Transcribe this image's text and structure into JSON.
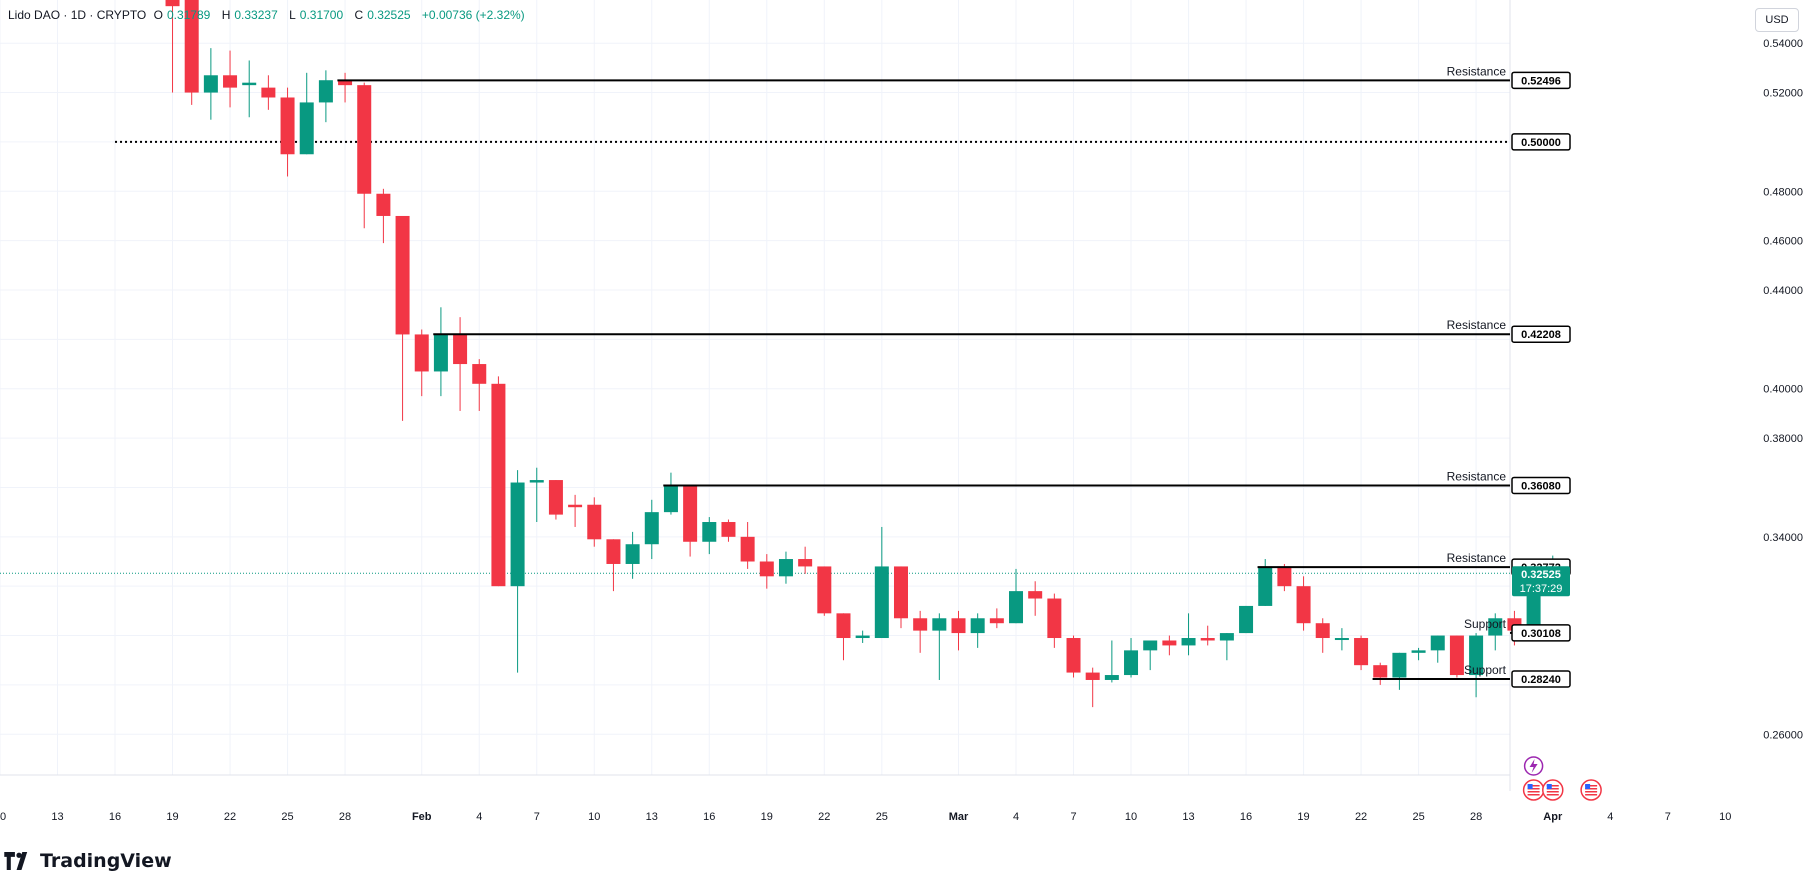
{
  "header": {
    "symbol": "Lido DAO · 1D · CRYPTO",
    "open_label": "O",
    "open": "0.31789",
    "high_label": "H",
    "high": "0.33237",
    "low_label": "L",
    "low": "0.31700",
    "close_label": "C",
    "close": "0.32525",
    "change": "+0.00736 (+2.32%)"
  },
  "currency_button": "USD",
  "brand": "TradingView",
  "colors": {
    "up": "#089981",
    "down": "#f23645",
    "level_line": "#000000",
    "grid": "#f0f3fa",
    "text": "#131722",
    "event_flash": "#9c27b0",
    "event_flag": "#f23645"
  },
  "chart_data": {
    "type": "candlestick",
    "symbol": "Lido DAO",
    "interval": "1D",
    "exchange": "CRYPTO",
    "price_axis": {
      "range": [
        0.2435,
        0.5575
      ],
      "ticks": [
        "0.54000",
        "0.52000",
        "0.48000",
        "0.46000",
        "0.44000",
        "0.40000",
        "0.38000",
        "0.34000",
        "0.26000"
      ]
    },
    "time_axis": {
      "index_range": [
        -0.3,
        52.8
      ],
      "ticks": [
        {
          "i": -0.1,
          "label": "10"
        },
        {
          "i": 2.9,
          "label": "13"
        },
        {
          "i": 5.9,
          "label": "16"
        },
        {
          "i": 8.9,
          "label": "19"
        },
        {
          "i": 11.9,
          "label": "22"
        },
        {
          "i": 14.9,
          "label": "25"
        },
        {
          "i": 17.9,
          "label": "28"
        },
        {
          "i": 21.9,
          "label": "Feb"
        },
        {
          "i": 24.9,
          "label": "4"
        },
        {
          "i": 27.9,
          "label": "7"
        },
        {
          "i": 30.9,
          "label": "10"
        },
        {
          "i": 33.9,
          "label": "13"
        },
        {
          "i": 36.9,
          "label": "16"
        },
        {
          "i": 39.9,
          "label": "19"
        },
        {
          "i": 42.9,
          "label": "22"
        },
        {
          "i": 45.9,
          "label": "25"
        },
        {
          "i": 49.9,
          "label": "Mar"
        },
        {
          "i": 52.9,
          "label": "4"
        },
        {
          "i": 55.9,
          "label": "7"
        },
        {
          "i": 58.9,
          "label": "10"
        },
        {
          "i": 61.9,
          "label": "13"
        },
        {
          "i": 64.9,
          "label": "16"
        },
        {
          "i": 67.9,
          "label": "19"
        },
        {
          "i": 70.9,
          "label": "22"
        },
        {
          "i": 73.9,
          "label": "25"
        },
        {
          "i": 76.9,
          "label": "28"
        },
        {
          "i": 80.9,
          "label": "Apr"
        },
        {
          "i": 83.9,
          "label": "4"
        },
        {
          "i": 86.9,
          "label": "7"
        },
        {
          "i": 89.9,
          "label": "10"
        }
      ]
    },
    "candles": [
      {
        "i": 8.9,
        "o": 0.5575,
        "h": 0.5575,
        "l": 0.52,
        "c": 0.555
      },
      {
        "i": 9.9,
        "o": 0.5575,
        "h": 0.5575,
        "l": 0.515,
        "c": 0.52
      },
      {
        "i": 10.9,
        "o": 0.52,
        "h": 0.538,
        "l": 0.509,
        "c": 0.527
      },
      {
        "i": 11.9,
        "o": 0.527,
        "h": 0.537,
        "l": 0.514,
        "c": 0.522
      },
      {
        "i": 12.9,
        "o": 0.523,
        "h": 0.533,
        "l": 0.51,
        "c": 0.524
      },
      {
        "i": 13.9,
        "o": 0.522,
        "h": 0.527,
        "l": 0.513,
        "c": 0.518
      },
      {
        "i": 14.9,
        "o": 0.518,
        "h": 0.522,
        "l": 0.486,
        "c": 0.495
      },
      {
        "i": 15.9,
        "o": 0.495,
        "h": 0.528,
        "l": 0.495,
        "c": 0.516
      },
      {
        "i": 16.9,
        "o": 0.516,
        "h": 0.529,
        "l": 0.508,
        "c": 0.525
      },
      {
        "i": 17.9,
        "o": 0.525,
        "h": 0.528,
        "l": 0.516,
        "c": 0.523
      },
      {
        "i": 18.9,
        "o": 0.523,
        "h": 0.524,
        "l": 0.465,
        "c": 0.479
      },
      {
        "i": 19.9,
        "o": 0.479,
        "h": 0.481,
        "l": 0.459,
        "c": 0.47
      },
      {
        "i": 20.9,
        "o": 0.47,
        "h": 0.47,
        "l": 0.387,
        "c": 0.422
      },
      {
        "i": 21.9,
        "o": 0.422,
        "h": 0.424,
        "l": 0.397,
        "c": 0.407
      },
      {
        "i": 22.9,
        "o": 0.407,
        "h": 0.433,
        "l": 0.397,
        "c": 0.422
      },
      {
        "i": 23.9,
        "o": 0.422,
        "h": 0.429,
        "l": 0.391,
        "c": 0.41
      },
      {
        "i": 24.9,
        "o": 0.41,
        "h": 0.412,
        "l": 0.391,
        "c": 0.402
      },
      {
        "i": 25.9,
        "o": 0.402,
        "h": 0.405,
        "l": 0.32,
        "c": 0.32
      },
      {
        "i": 26.9,
        "o": 0.32,
        "h": 0.367,
        "l": 0.285,
        "c": 0.362
      },
      {
        "i": 27.9,
        "o": 0.362,
        "h": 0.368,
        "l": 0.346,
        "c": 0.363
      },
      {
        "i": 28.9,
        "o": 0.363,
        "h": 0.363,
        "l": 0.347,
        "c": 0.349
      },
      {
        "i": 29.9,
        "o": 0.353,
        "h": 0.357,
        "l": 0.344,
        "c": 0.352
      },
      {
        "i": 30.9,
        "o": 0.353,
        "h": 0.356,
        "l": 0.336,
        "c": 0.339
      },
      {
        "i": 31.9,
        "o": 0.339,
        "h": 0.339,
        "l": 0.318,
        "c": 0.329
      },
      {
        "i": 32.9,
        "o": 0.329,
        "h": 0.342,
        "l": 0.323,
        "c": 0.337
      },
      {
        "i": 33.9,
        "o": 0.337,
        "h": 0.355,
        "l": 0.331,
        "c": 0.35
      },
      {
        "i": 34.9,
        "o": 0.35,
        "h": 0.366,
        "l": 0.349,
        "c": 0.3608
      },
      {
        "i": 35.9,
        "o": 0.3608,
        "h": 0.361,
        "l": 0.332,
        "c": 0.338
      },
      {
        "i": 36.9,
        "o": 0.338,
        "h": 0.348,
        "l": 0.333,
        "c": 0.346
      },
      {
        "i": 37.9,
        "o": 0.346,
        "h": 0.347,
        "l": 0.338,
        "c": 0.34
      },
      {
        "i": 38.9,
        "o": 0.34,
        "h": 0.346,
        "l": 0.327,
        "c": 0.33
      },
      {
        "i": 39.9,
        "o": 0.33,
        "h": 0.333,
        "l": 0.319,
        "c": 0.324
      },
      {
        "i": 40.9,
        "o": 0.324,
        "h": 0.334,
        "l": 0.321,
        "c": 0.331
      },
      {
        "i": 41.9,
        "o": 0.331,
        "h": 0.336,
        "l": 0.325,
        "c": 0.328
      },
      {
        "i": 42.9,
        "o": 0.328,
        "h": 0.328,
        "l": 0.308,
        "c": 0.309
      },
      {
        "i": 43.9,
        "o": 0.309,
        "h": 0.309,
        "l": 0.29,
        "c": 0.299
      },
      {
        "i": 44.9,
        "o": 0.299,
        "h": 0.302,
        "l": 0.297,
        "c": 0.3
      },
      {
        "i": 45.9,
        "o": 0.299,
        "h": 0.344,
        "l": 0.299,
        "c": 0.328
      },
      {
        "i": 46.9,
        "o": 0.328,
        "h": 0.328,
        "l": 0.303,
        "c": 0.307
      },
      {
        "i": 47.9,
        "o": 0.307,
        "h": 0.31,
        "l": 0.293,
        "c": 0.302
      },
      {
        "i": 48.9,
        "o": 0.302,
        "h": 0.309,
        "l": 0.282,
        "c": 0.307
      },
      {
        "i": 49.9,
        "o": 0.307,
        "h": 0.31,
        "l": 0.294,
        "c": 0.301
      },
      {
        "i": 50.9,
        "o": 0.301,
        "h": 0.309,
        "l": 0.295,
        "c": 0.307
      },
      {
        "i": 51.9,
        "o": 0.307,
        "h": 0.311,
        "l": 0.303,
        "c": 0.305
      },
      {
        "i": 52.9,
        "o": 0.305,
        "h": 0.327,
        "l": 0.305,
        "c": 0.318
      },
      {
        "i": 53.9,
        "o": 0.318,
        "h": 0.322,
        "l": 0.308,
        "c": 0.315
      },
      {
        "i": 54.9,
        "o": 0.315,
        "h": 0.317,
        "l": 0.295,
        "c": 0.299
      },
      {
        "i": 55.9,
        "o": 0.299,
        "h": 0.3,
        "l": 0.283,
        "c": 0.285
      },
      {
        "i": 56.9,
        "o": 0.285,
        "h": 0.287,
        "l": 0.271,
        "c": 0.282
      },
      {
        "i": 57.9,
        "o": 0.282,
        "h": 0.298,
        "l": 0.281,
        "c": 0.284
      },
      {
        "i": 58.9,
        "o": 0.284,
        "h": 0.299,
        "l": 0.283,
        "c": 0.294
      },
      {
        "i": 59.9,
        "o": 0.294,
        "h": 0.298,
        "l": 0.286,
        "c": 0.298
      },
      {
        "i": 60.9,
        "o": 0.298,
        "h": 0.3,
        "l": 0.292,
        "c": 0.296
      },
      {
        "i": 61.9,
        "o": 0.296,
        "h": 0.309,
        "l": 0.292,
        "c": 0.299
      },
      {
        "i": 62.9,
        "o": 0.299,
        "h": 0.304,
        "l": 0.296,
        "c": 0.298
      },
      {
        "i": 63.9,
        "o": 0.298,
        "h": 0.301,
        "l": 0.29,
        "c": 0.301
      },
      {
        "i": 64.9,
        "o": 0.301,
        "h": 0.312,
        "l": 0.301,
        "c": 0.312
      },
      {
        "i": 65.9,
        "o": 0.312,
        "h": 0.331,
        "l": 0.312,
        "c": 0.328
      },
      {
        "i": 66.9,
        "o": 0.328,
        "h": 0.329,
        "l": 0.318,
        "c": 0.32
      },
      {
        "i": 67.9,
        "o": 0.32,
        "h": 0.324,
        "l": 0.302,
        "c": 0.305
      },
      {
        "i": 68.9,
        "o": 0.305,
        "h": 0.307,
        "l": 0.293,
        "c": 0.299
      },
      {
        "i": 69.9,
        "o": 0.299,
        "h": 0.303,
        "l": 0.294,
        "c": 0.299
      },
      {
        "i": 70.9,
        "o": 0.299,
        "h": 0.3,
        "l": 0.286,
        "c": 0.288
      },
      {
        "i": 71.9,
        "o": 0.288,
        "h": 0.289,
        "l": 0.28,
        "c": 0.283
      },
      {
        "i": 72.9,
        "o": 0.283,
        "h": 0.293,
        "l": 0.278,
        "c": 0.293
      },
      {
        "i": 73.9,
        "o": 0.293,
        "h": 0.295,
        "l": 0.29,
        "c": 0.294
      },
      {
        "i": 74.9,
        "o": 0.294,
        "h": 0.3,
        "l": 0.289,
        "c": 0.3
      },
      {
        "i": 75.9,
        "o": 0.3,
        "h": 0.3,
        "l": 0.283,
        "c": 0.284
      },
      {
        "i": 76.9,
        "o": 0.284,
        "h": 0.301,
        "l": 0.275,
        "c": 0.3
      },
      {
        "i": 77.9,
        "o": 0.3,
        "h": 0.309,
        "l": 0.294,
        "c": 0.307
      },
      {
        "i": 78.9,
        "o": 0.307,
        "h": 0.31,
        "l": 0.296,
        "c": 0.302
      },
      {
        "i": 79.9,
        "o": 0.302,
        "h": 0.323,
        "l": 0.302,
        "c": 0.319
      },
      {
        "i": 80.9,
        "o": 0.3179,
        "h": 0.3324,
        "l": 0.317,
        "c": 0.3253
      }
    ],
    "levels": [
      {
        "label": "Resistance",
        "price": "0.52496",
        "value": 0.52496,
        "start_i": 17.5
      },
      {
        "label": "Resistance",
        "price": "0.42208",
        "value": 0.42208,
        "start_i": 22.5
      },
      {
        "label": "Resistance",
        "price": "0.36080",
        "value": 0.3608,
        "start_i": 34.5
      },
      {
        "label": "Resistance",
        "price": "0.32772",
        "value": 0.32772,
        "start_i": 65.5
      },
      {
        "label": "Support",
        "price": "0.30108",
        "value": 0.30108,
        "start_i": 79.5
      },
      {
        "label": "Support",
        "price": "0.28240",
        "value": 0.2824,
        "start_i": 71.5
      }
    ],
    "dotted_level": {
      "price": "0.50000",
      "value": 0.5,
      "start_i": 5.9
    },
    "current_price": {
      "price": "0.32525",
      "value": 0.32525,
      "countdown": "17:37:29"
    },
    "events": [
      {
        "kind": "flash",
        "i": 79.9
      },
      {
        "kind": "us-flag",
        "i": 79.9
      },
      {
        "kind": "us-flag",
        "i": 80.9
      },
      {
        "kind": "us-flag",
        "i": 82.9
      }
    ]
  }
}
